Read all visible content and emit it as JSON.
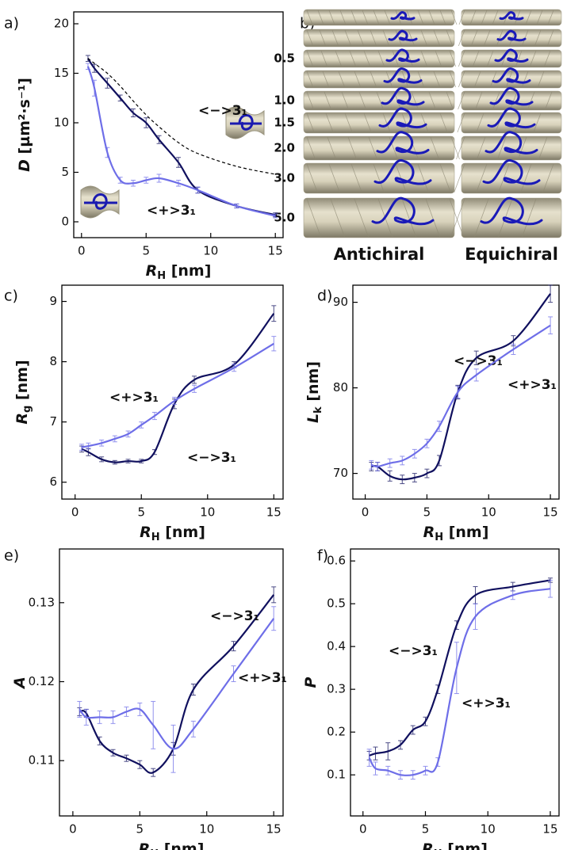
{
  "chart_data": [
    {
      "type": "line",
      "title": "a)",
      "x_label": {
        "symbol": "R",
        "subscript": "H",
        "unit": "[nm]"
      },
      "y_label": {
        "symbol": "D",
        "unit": "[µm²·s⁻¹]"
      },
      "xlim": [
        -0.6,
        15.6
      ],
      "ylim": [
        -1.6,
        21.2
      ],
      "xticks": [
        0,
        5,
        10,
        15
      ],
      "yticks": [
        0,
        5,
        10,
        15,
        20
      ],
      "x": [
        0.5,
        1,
        2,
        3,
        4,
        5,
        6,
        7.5,
        9,
        12,
        15
      ],
      "series": [
        {
          "name": "<−>3₁",
          "color": "#10105e",
          "values": [
            16.5,
            15.5,
            14,
            12.5,
            11,
            10,
            8.3,
            6,
            3.2,
            1.6,
            0.7
          ],
          "errors": [
            0.3,
            0.4,
            0.5,
            0.3,
            0.4,
            0.5,
            0.4,
            0.5,
            0.3,
            0.2,
            0.2
          ]
        },
        {
          "name": "<+>3₁",
          "color": "#6e6ee8",
          "values": [
            15.7,
            13.5,
            7,
            4.2,
            3.9,
            4.2,
            4.4,
            3.9,
            3.2,
            1.6,
            0.6
          ],
          "errors": [
            0.3,
            0.8,
            0.5,
            0.3,
            0.3,
            0.3,
            0.4,
            0.3,
            0.3,
            0.2,
            0.2
          ]
        },
        {
          "color": "#000000",
          "dash": true,
          "values": [
            16.5,
            16,
            15,
            13.7,
            12.2,
            10.8,
            9.6,
            8,
            6.9,
            5.6,
            4.8
          ]
        }
      ]
    },
    {
      "type": "line",
      "title": "c)",
      "x_label": {
        "symbol": "R",
        "subscript": "H",
        "unit": "[nm]"
      },
      "y_label": {
        "symbol": "R",
        "subscript": "g",
        "unit": "[nm]"
      },
      "xlim": [
        -1,
        15.7
      ],
      "ylim": [
        5.72,
        9.27
      ],
      "xticks": [
        0,
        5,
        10,
        15
      ],
      "yticks": [
        6,
        7,
        8,
        9
      ],
      "x": [
        0.5,
        1,
        2,
        3,
        4,
        5,
        6,
        7.5,
        9,
        12,
        15
      ],
      "series": [
        {
          "name": "<−>3₁",
          "color": "#10105e",
          "values": [
            6.55,
            6.5,
            6.38,
            6.33,
            6.35,
            6.35,
            6.5,
            7.3,
            7.7,
            7.95,
            8.8
          ],
          "errors": [
            0.05,
            0.06,
            0.04,
            0.03,
            0.03,
            0.03,
            0.04,
            0.08,
            0.06,
            0.05,
            0.13
          ]
        },
        {
          "name": "<+>3₁",
          "color": "#6e6ee8",
          "values": [
            6.58,
            6.6,
            6.65,
            6.72,
            6.8,
            6.95,
            7.1,
            7.35,
            7.55,
            7.9,
            8.3
          ],
          "errors": [
            0.05,
            0.05,
            0.05,
            0.05,
            0.05,
            0.05,
            0.06,
            0.06,
            0.06,
            0.06,
            0.12
          ]
        }
      ]
    },
    {
      "type": "line",
      "title": "d)",
      "x_label": {
        "symbol": "R",
        "subscript": "H",
        "unit": "[nm]"
      },
      "y_label": {
        "symbol": "L",
        "subscript": "k",
        "unit": "[nm]"
      },
      "xlim": [
        -1,
        15.7
      ],
      "ylim": [
        67,
        92
      ],
      "xticks": [
        0,
        5,
        10,
        15
      ],
      "yticks": [
        70,
        80,
        90
      ],
      "x": [
        0.5,
        1,
        2,
        3,
        4,
        5,
        6,
        7.5,
        9,
        12,
        15
      ],
      "series": [
        {
          "name": "<−>3₁",
          "color": "#10105e",
          "values": [
            70.8,
            70.8,
            69.7,
            69.3,
            69.5,
            70,
            71.5,
            79.5,
            83.5,
            85.5,
            91
          ],
          "errors": [
            0.5,
            0.5,
            0.6,
            0.5,
            0.5,
            0.5,
            0.6,
            0.8,
            0.8,
            0.6,
            1
          ]
        },
        {
          "name": "<+>3₁",
          "color": "#6e6ee8",
          "values": [
            71,
            70.8,
            71.2,
            71.5,
            72.3,
            73.5,
            75.5,
            79.5,
            81.5,
            84.5,
            87.3
          ],
          "errors": [
            0.5,
            0.5,
            0.5,
            0.5,
            0.5,
            0.5,
            0.6,
            0.7,
            0.7,
            0.6,
            1
          ]
        }
      ]
    },
    {
      "type": "line",
      "title": "e)",
      "x_label": {
        "symbol": "R",
        "subscript": "H",
        "unit": "[nm]"
      },
      "y_label": {
        "symbol": "A"
      },
      "xlim": [
        -1,
        15.7
      ],
      "ylim": [
        0.103,
        0.1368
      ],
      "xticks": [
        0,
        5,
        10,
        15
      ],
      "yticks": [
        0.11,
        0.12,
        0.13
      ],
      "x": [
        0.5,
        1,
        2,
        3,
        4,
        5,
        6,
        7.5,
        9,
        12,
        15
      ],
      "series": [
        {
          "name": "<−>3₁",
          "color": "#10105e",
          "values": [
            0.1162,
            0.116,
            0.1125,
            0.111,
            0.1103,
            0.1095,
            0.1085,
            0.1115,
            0.119,
            0.1245,
            0.131
          ],
          "errors": [
            0.0005,
            0.0005,
            0.0005,
            0.0004,
            0.0004,
            0.0005,
            0.0005,
            0.0008,
            0.0007,
            0.0006,
            0.001
          ]
        },
        {
          "name": "<+>3₁",
          "color": "#6e6ee8",
          "values": [
            0.1165,
            0.1155,
            0.1155,
            0.1155,
            0.1162,
            0.1165,
            0.1145,
            0.1115,
            0.114,
            0.121,
            0.128
          ],
          "errors": [
            0.001,
            0.001,
            0.0008,
            0.0008,
            0.0006,
            0.0008,
            0.003,
            0.003,
            0.001,
            0.001,
            0.0015
          ]
        }
      ]
    },
    {
      "type": "line",
      "title": "f)",
      "x_label": {
        "symbol": "R",
        "subscript": "H",
        "unit": "[nm]"
      },
      "y_label": {
        "symbol": "P"
      },
      "xlim": [
        -1,
        15.7
      ],
      "ylim": [
        0.004,
        0.628
      ],
      "xticks": [
        0,
        5,
        10,
        15
      ],
      "yticks": [
        0.1,
        0.2,
        0.3,
        0.4,
        0.5,
        0.6
      ],
      "x": [
        0.5,
        1,
        2,
        3,
        4,
        5,
        6,
        7.5,
        9,
        12,
        15
      ],
      "series": [
        {
          "name": "<−>3₁",
          "color": "#10105e",
          "values": [
            0.145,
            0.15,
            0.155,
            0.17,
            0.205,
            0.225,
            0.3,
            0.45,
            0.52,
            0.54,
            0.555
          ],
          "errors": [
            0.01,
            0.015,
            0.02,
            0.01,
            0.01,
            0.01,
            0.01,
            0.01,
            0.02,
            0.01,
            0.005
          ]
        },
        {
          "name": "<+>3₁",
          "color": "#6e6ee8",
          "values": [
            0.14,
            0.115,
            0.11,
            0.1,
            0.1,
            0.11,
            0.13,
            0.35,
            0.47,
            0.52,
            0.535
          ],
          "errors": [
            0.02,
            0.015,
            0.01,
            0.01,
            0.01,
            0.01,
            0.01,
            0.06,
            0.03,
            0.01,
            0.02
          ]
        }
      ]
    }
  ],
  "panel_b": {
    "label": "b)",
    "rows": [
      null,
      null,
      "0.5",
      null,
      "1.0",
      "1.5",
      "2.0",
      "3.0",
      "5.0"
    ],
    "columns": [
      "Antichiral",
      "Equichiral"
    ]
  }
}
